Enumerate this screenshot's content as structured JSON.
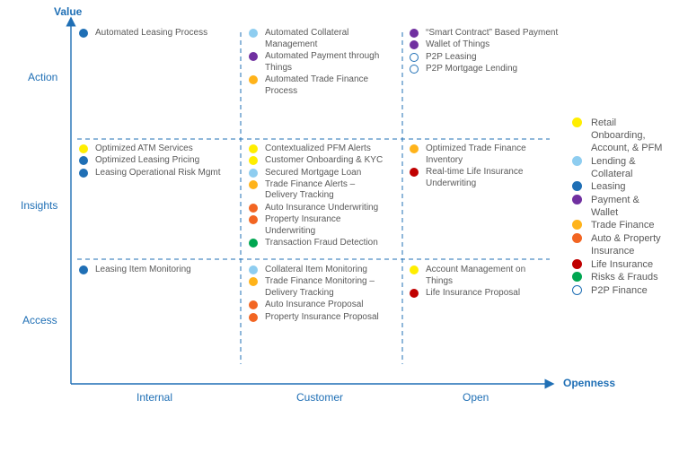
{
  "axes": {
    "y_title": "Value",
    "x_title": "Openness",
    "rows": [
      "Action",
      "Insights",
      "Access"
    ],
    "columns": [
      "Internal",
      "Customer",
      "Open"
    ]
  },
  "categories": {
    "retail": {
      "label": "Retail\nOnboarding,\nAccount, & PFM",
      "color": "#ffee00",
      "hollow": false
    },
    "lending": {
      "label": "Lending &\nCollateral",
      "color": "#8ecdf0",
      "hollow": false
    },
    "leasing": {
      "label": "Leasing",
      "color": "#1f6fb5",
      "hollow": false
    },
    "payment": {
      "label": "Payment &\nWallet",
      "color": "#7030a0",
      "hollow": false
    },
    "trade": {
      "label": "Trade Finance",
      "color": "#ffb31a",
      "hollow": false
    },
    "auto": {
      "label": "Auto & Property\nInsurance",
      "color": "#f26522",
      "hollow": false
    },
    "life": {
      "label": "Life Insurance",
      "color": "#c00000",
      "hollow": false
    },
    "risk": {
      "label": "Risks & Frauds",
      "color": "#00a651",
      "hollow": false
    },
    "p2p": {
      "label": "P2P Finance",
      "color": "#1f6fb5",
      "hollow": true
    }
  },
  "legend_order": [
    "retail",
    "lending",
    "leasing",
    "payment",
    "trade",
    "auto",
    "life",
    "risk",
    "p2p"
  ],
  "cells": [
    {
      "row": "Action",
      "col": "Internal",
      "items": [
        {
          "cat": "leasing",
          "text": "Automated Leasing Process"
        }
      ]
    },
    {
      "row": "Action",
      "col": "Customer",
      "items": [
        {
          "cat": "lending",
          "text": "Automated Collateral\nManagement"
        },
        {
          "cat": "payment",
          "text": "Automated Payment through\nThings"
        },
        {
          "cat": "trade",
          "text": "Automated Trade Finance\nProcess"
        }
      ]
    },
    {
      "row": "Action",
      "col": "Open",
      "items": [
        {
          "cat": "payment",
          "text": "“Smart Contract” Based Payment"
        },
        {
          "cat": "payment",
          "text": "Wallet of Things"
        },
        {
          "cat": "p2p",
          "text": "P2P Leasing"
        },
        {
          "cat": "p2p",
          "text": "P2P Mortgage Lending"
        }
      ]
    },
    {
      "row": "Insights",
      "col": "Internal",
      "items": [
        {
          "cat": "retail",
          "text": "Optimized ATM Services"
        },
        {
          "cat": "leasing",
          "text": "Optimized Leasing Pricing"
        },
        {
          "cat": "leasing",
          "text": "Leasing Operational Risk Mgmt"
        }
      ]
    },
    {
      "row": "Insights",
      "col": "Customer",
      "items": [
        {
          "cat": "retail",
          "text": "Contextualized PFM Alerts"
        },
        {
          "cat": "retail",
          "text": "Customer Onboarding & KYC"
        },
        {
          "cat": "lending",
          "text": "Secured Mortgage Loan"
        },
        {
          "cat": "trade",
          "text": "Trade Finance Alerts –\nDelivery Tracking"
        },
        {
          "cat": "auto",
          "text": "Auto Insurance Underwriting"
        },
        {
          "cat": "auto",
          "text": "Property Insurance\nUnderwriting"
        },
        {
          "cat": "risk",
          "text": "Transaction Fraud Detection"
        }
      ]
    },
    {
      "row": "Insights",
      "col": "Open",
      "items": [
        {
          "cat": "trade",
          "text": "Optimized Trade Finance\nInventory"
        },
        {
          "cat": "life",
          "text": "Real-time Life Insurance\nUnderwriting"
        }
      ]
    },
    {
      "row": "Access",
      "col": "Internal",
      "items": [
        {
          "cat": "leasing",
          "text": "Leasing Item Monitoring"
        }
      ]
    },
    {
      "row": "Access",
      "col": "Customer",
      "items": [
        {
          "cat": "lending",
          "text": "Collateral Item Monitoring"
        },
        {
          "cat": "trade",
          "text": "Trade Finance Monitoring –\nDelivery Tracking"
        },
        {
          "cat": "auto",
          "text": "Auto Insurance Proposal"
        },
        {
          "cat": "auto",
          "text": "Property Insurance Proposal"
        }
      ]
    },
    {
      "row": "Access",
      "col": "Open",
      "items": [
        {
          "cat": "retail",
          "text": "Account Management on\nThings"
        },
        {
          "cat": "life",
          "text": "Life Insurance Proposal"
        }
      ]
    }
  ]
}
